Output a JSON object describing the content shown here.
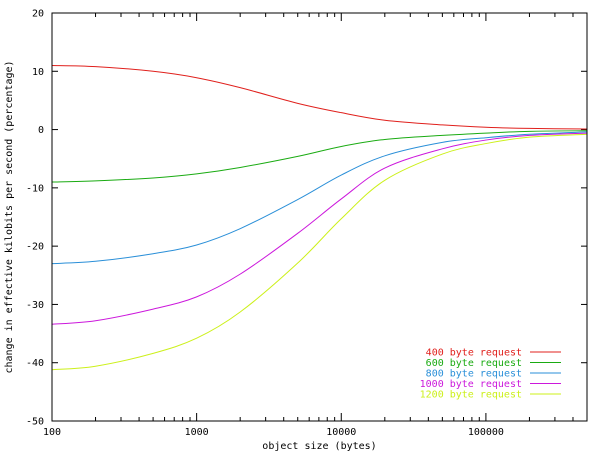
{
  "chart_data": {
    "type": "line",
    "title": "",
    "xlabel": "object size (bytes)",
    "ylabel": "change in effective kilobits per second (percentage)",
    "xscale": "log",
    "xlim": [
      100,
      500000
    ],
    "ylim": [
      -50,
      20
    ],
    "grid": false,
    "legend_position": "bottom-right",
    "x_ticks": [
      100,
      1000,
      10000,
      100000
    ],
    "x_tick_labels": [
      "100",
      "1000",
      "10000",
      "100000"
    ],
    "y_ticks": [
      20,
      10,
      0,
      -10,
      -20,
      -30,
      -40,
      -50
    ],
    "y_tick_labels": [
      "20",
      "10",
      "0",
      "-10",
      "-20",
      "-30",
      "-40",
      "-50"
    ],
    "x": [
      100,
      200,
      500,
      1000,
      2000,
      5000,
      10000,
      20000,
      50000,
      100000,
      200000,
      500000
    ],
    "series": [
      {
        "name": "400 byte request",
        "color": "#e0201c",
        "values": [
          11.0,
          10.8,
          10.0,
          8.9,
          7.2,
          4.5,
          2.9,
          1.6,
          0.8,
          0.4,
          0.2,
          0.1
        ]
      },
      {
        "name": "600 byte request",
        "color": "#1aab12",
        "values": [
          -9.0,
          -8.8,
          -8.3,
          -7.6,
          -6.5,
          -4.6,
          -2.9,
          -1.7,
          -1.0,
          -0.6,
          -0.3,
          -0.2
        ]
      },
      {
        "name": "800 byte request",
        "color": "#2a8fd8",
        "values": [
          -23.0,
          -22.6,
          -21.3,
          -19.8,
          -17.0,
          -12.0,
          -7.8,
          -4.5,
          -2.2,
          -1.4,
          -0.8,
          -0.4
        ]
      },
      {
        "name": "1000 byte request",
        "color": "#cc18dc",
        "values": [
          -33.4,
          -32.8,
          -30.8,
          -28.7,
          -24.8,
          -17.8,
          -11.9,
          -6.6,
          -3.3,
          -1.8,
          -1.0,
          -0.6
        ]
      },
      {
        "name": "1200 byte request",
        "color": "#ccf01a",
        "values": [
          -41.2,
          -40.6,
          -38.4,
          -35.8,
          -31.3,
          -22.9,
          -15.3,
          -8.7,
          -4.2,
          -2.4,
          -1.3,
          -0.8
        ]
      }
    ]
  }
}
